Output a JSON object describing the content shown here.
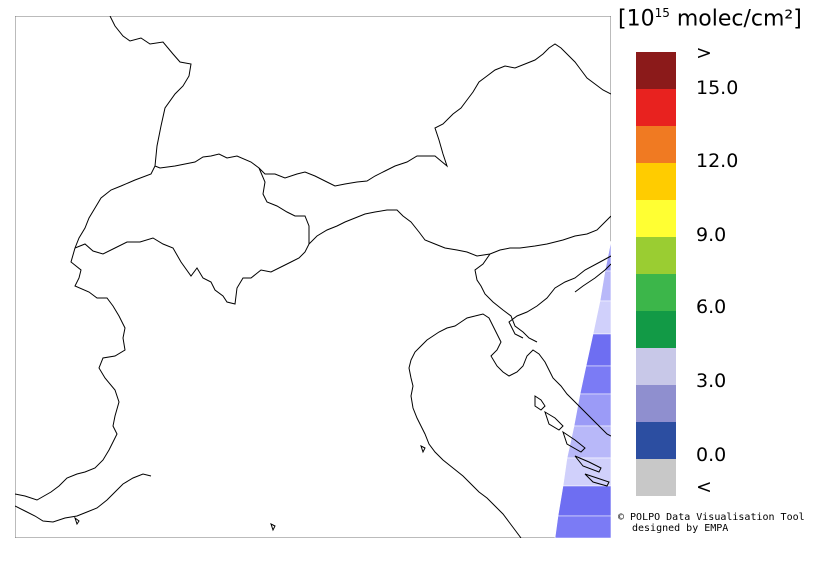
{
  "legend": {
    "title_prefix": "[10",
    "title_exp": "15",
    "title_suffix": " molec/cm²]",
    "colors": [
      "#8b1a1a",
      "#e8221f",
      "#f07a22",
      "#ffcc00",
      "#ffff33",
      "#9acd32",
      "#3cb64a",
      "#129a46",
      "#c8c8e8",
      "#8f8fcf",
      "#2c4ea1",
      "#c8c8c8"
    ],
    "labels": [
      ">",
      "15.0",
      "12.0",
      "9.0",
      "6.0",
      "3.0",
      "0.0",
      "<"
    ]
  },
  "credit": {
    "line1": "© POLPO Data Visualisation Tool",
    "line2": "designed by EMPA"
  },
  "overlay": {
    "colors": [
      "#7b7bf5",
      "#9b9bf7",
      "#b8b8f9",
      "#d0d0fb",
      "#6e6ef2"
    ]
  }
}
